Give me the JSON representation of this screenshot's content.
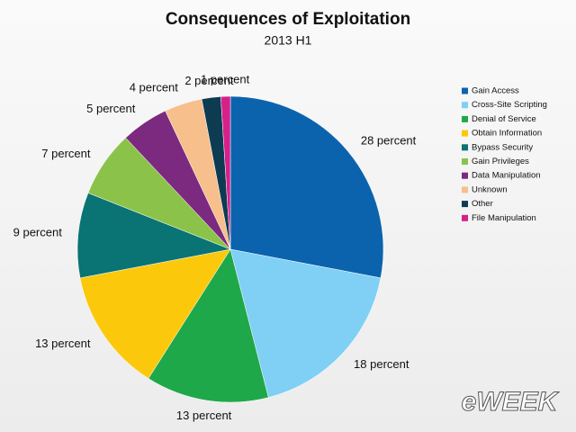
{
  "chart_data": {
    "type": "pie",
    "title": "Consequences of Exploitation",
    "subtitle": "2013 H1",
    "categories": [
      "Gain Access",
      "Cross-Site Scripting",
      "Denial of Service",
      "Obtain Information",
      "Bypass Security",
      "Gain Privileges",
      "Data Manipulation",
      "Unknown",
      "Other",
      "File Manipulation"
    ],
    "values": [
      28,
      18,
      13,
      13,
      9,
      7,
      5,
      4,
      2,
      1
    ],
    "value_labels": [
      "28 percent",
      "18 percent",
      "13 percent",
      "13 percent",
      "9 percent",
      "7 percent",
      "5 percent",
      "4 percent",
      "2 percent",
      "1 percent"
    ],
    "colors": [
      "#0b63ad",
      "#7fd0f4",
      "#1fa84a",
      "#fcc80c",
      "#0a7374",
      "#8bc34a",
      "#7b2a7f",
      "#f7bf8b",
      "#0d3b52",
      "#d6208a"
    ],
    "legend": "right",
    "watermark": "eWEEK"
  }
}
